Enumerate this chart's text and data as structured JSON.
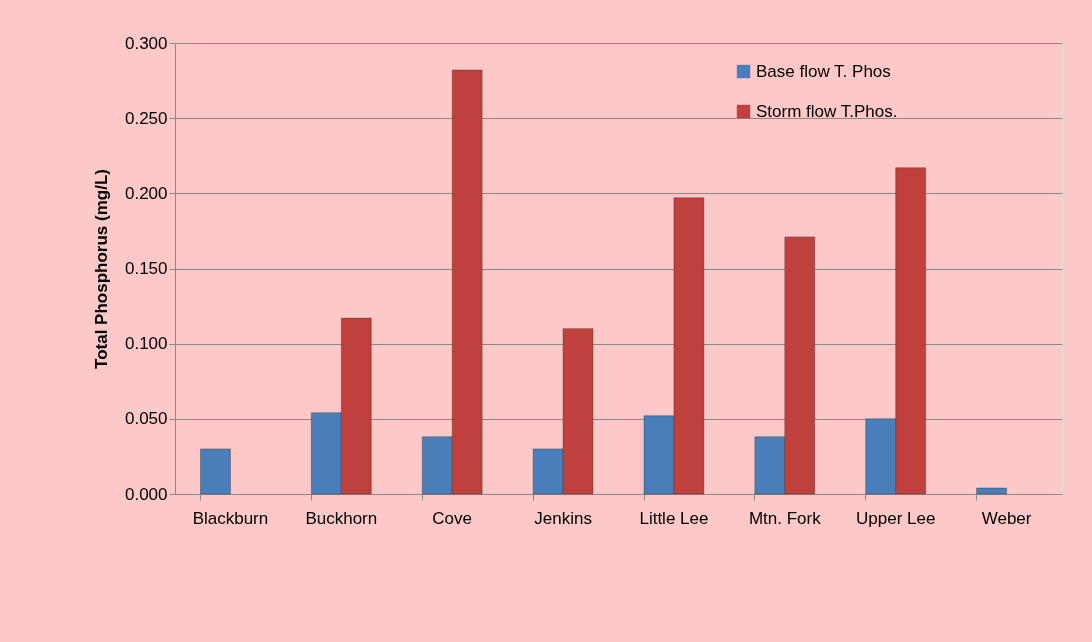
{
  "chart_data": {
    "type": "bar",
    "ylabel": "Total Phosphorus (mg/L)",
    "categories": [
      "Blackburn",
      "Buckhorn",
      "Cove",
      "Jenkins",
      "Little Lee",
      "Mtn. Fork",
      "Upper Lee",
      "Weber"
    ],
    "series": [
      {
        "name": "Base flow T. Phos",
        "color": "#4a7ebb",
        "values": [
          0.03,
          0.054,
          0.038,
          0.03,
          0.052,
          0.038,
          0.05,
          0.004
        ]
      },
      {
        "name": "Storm flow T.Phos.",
        "color": "#c0403d",
        "values": [
          null,
          0.117,
          0.282,
          0.11,
          0.197,
          0.171,
          0.217,
          null
        ]
      }
    ],
    "ylim": [
      0,
      0.3
    ],
    "yticks": [
      {
        "value": 0,
        "label": "0.000"
      },
      {
        "value": 0.05,
        "label": "0.050"
      },
      {
        "value": 0.1,
        "label": "0.100"
      },
      {
        "value": 0.15,
        "label": "0.150"
      },
      {
        "value": 0.2,
        "label": "0.200"
      },
      {
        "value": 0.25,
        "label": "0.250"
      },
      {
        "value": 0.3,
        "label": "0.300"
      }
    ],
    "grid": "y",
    "legend": "top right"
  }
}
